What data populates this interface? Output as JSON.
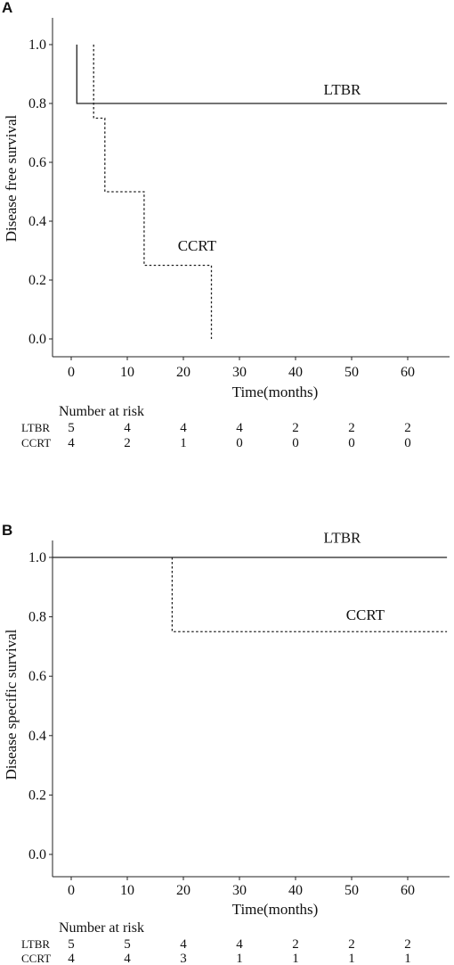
{
  "chart_data": [
    {
      "type": "line",
      "panel_label": "A",
      "xlabel": "Time(months)",
      "ylabel": "Disease free survival",
      "xlim": [
        -6,
        67
      ],
      "ylim": [
        -0.03,
        1.05
      ],
      "x_ticks": [
        0,
        10,
        20,
        30,
        40,
        50,
        60
      ],
      "y_ticks": [
        "0.0",
        "0.2",
        "0.4",
        "0.6",
        "0.8",
        "1.0"
      ],
      "grid": false,
      "step": true,
      "series": [
        {
          "name": "LTBR",
          "style": "solid",
          "points": [
            [
              1,
              1.0
            ],
            [
              1,
              0.8
            ],
            [
              67,
              0.8
            ]
          ],
          "label_at": [
            45,
            0.83
          ]
        },
        {
          "name": "CCRT",
          "style": "dashed",
          "points": [
            [
              4,
              1.0
            ],
            [
              4,
              0.75
            ],
            [
              6,
              0.75
            ],
            [
              6,
              0.5
            ],
            [
              13,
              0.5
            ],
            [
              13,
              0.25
            ],
            [
              25,
              0.25
            ],
            [
              25,
              0.0
            ]
          ],
          "label_at": [
            19,
            0.3
          ]
        }
      ],
      "risk_table": {
        "title": "Number at risk",
        "rows": [
          {
            "name": "LTBR",
            "values": [
              "5",
              "4",
              "4",
              "4",
              "2",
              "2",
              "2"
            ]
          },
          {
            "name": "CCRT",
            "values": [
              "4",
              "2",
              "1",
              "0",
              "0",
              "0",
              "0"
            ]
          }
        ]
      }
    },
    {
      "type": "line",
      "panel_label": "B",
      "xlabel": "Time(months)",
      "ylabel": "Disease specific survival",
      "xlim": [
        -6,
        67
      ],
      "ylim": [
        -0.03,
        1.05
      ],
      "x_ticks": [
        0,
        10,
        20,
        30,
        40,
        50,
        60
      ],
      "y_ticks": [
        "0.0",
        "0.2",
        "0.4",
        "0.6",
        "0.8",
        "1.0"
      ],
      "grid": false,
      "step": true,
      "series": [
        {
          "name": "LTBR",
          "style": "solid",
          "points": [
            [
              -6,
              1.0
            ],
            [
              67,
              1.0
            ]
          ],
          "label_at": [
            45,
            1.05
          ]
        },
        {
          "name": "CCRT",
          "style": "dashed",
          "points": [
            [
              18,
              1.0
            ],
            [
              18,
              0.75
            ],
            [
              67,
              0.75
            ]
          ],
          "label_at": [
            49,
            0.79
          ]
        }
      ],
      "risk_table": {
        "title": "Number at risk",
        "rows": [
          {
            "name": "LTBR",
            "values": [
              "5",
              "5",
              "4",
              "4",
              "2",
              "2",
              "2"
            ]
          },
          {
            "name": "CCRT",
            "values": [
              "4",
              "4",
              "3",
              "1",
              "1",
              "1",
              "1"
            ]
          }
        ]
      }
    }
  ]
}
